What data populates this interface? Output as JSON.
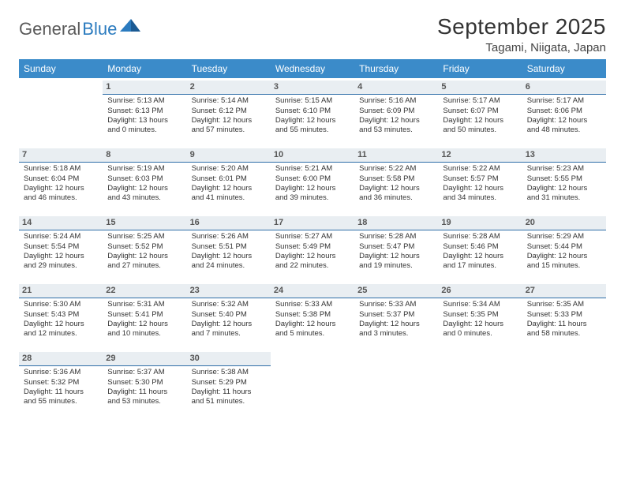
{
  "logo": {
    "text_a": "General",
    "text_b": "Blue"
  },
  "title": "September 2025",
  "location": "Tagami, Niigata, Japan",
  "colors": {
    "header_bg": "#3b8bc9",
    "header_text": "#ffffff",
    "daybar_bg": "#e9eef2",
    "daybar_border": "#2f6ea8",
    "logo_gray": "#5a5a5a",
    "logo_blue": "#2b7bbf"
  },
  "weekdays": [
    "Sunday",
    "Monday",
    "Tuesday",
    "Wednesday",
    "Thursday",
    "Friday",
    "Saturday"
  ],
  "start_offset": 1,
  "days": [
    {
      "n": 1,
      "sr": "5:13 AM",
      "ss": "6:13 PM",
      "dl": "13 hours and 0 minutes."
    },
    {
      "n": 2,
      "sr": "5:14 AM",
      "ss": "6:12 PM",
      "dl": "12 hours and 57 minutes."
    },
    {
      "n": 3,
      "sr": "5:15 AM",
      "ss": "6:10 PM",
      "dl": "12 hours and 55 minutes."
    },
    {
      "n": 4,
      "sr": "5:16 AM",
      "ss": "6:09 PM",
      "dl": "12 hours and 53 minutes."
    },
    {
      "n": 5,
      "sr": "5:17 AM",
      "ss": "6:07 PM",
      "dl": "12 hours and 50 minutes."
    },
    {
      "n": 6,
      "sr": "5:17 AM",
      "ss": "6:06 PM",
      "dl": "12 hours and 48 minutes."
    },
    {
      "n": 7,
      "sr": "5:18 AM",
      "ss": "6:04 PM",
      "dl": "12 hours and 46 minutes."
    },
    {
      "n": 8,
      "sr": "5:19 AM",
      "ss": "6:03 PM",
      "dl": "12 hours and 43 minutes."
    },
    {
      "n": 9,
      "sr": "5:20 AM",
      "ss": "6:01 PM",
      "dl": "12 hours and 41 minutes."
    },
    {
      "n": 10,
      "sr": "5:21 AM",
      "ss": "6:00 PM",
      "dl": "12 hours and 39 minutes."
    },
    {
      "n": 11,
      "sr": "5:22 AM",
      "ss": "5:58 PM",
      "dl": "12 hours and 36 minutes."
    },
    {
      "n": 12,
      "sr": "5:22 AM",
      "ss": "5:57 PM",
      "dl": "12 hours and 34 minutes."
    },
    {
      "n": 13,
      "sr": "5:23 AM",
      "ss": "5:55 PM",
      "dl": "12 hours and 31 minutes."
    },
    {
      "n": 14,
      "sr": "5:24 AM",
      "ss": "5:54 PM",
      "dl": "12 hours and 29 minutes."
    },
    {
      "n": 15,
      "sr": "5:25 AM",
      "ss": "5:52 PM",
      "dl": "12 hours and 27 minutes."
    },
    {
      "n": 16,
      "sr": "5:26 AM",
      "ss": "5:51 PM",
      "dl": "12 hours and 24 minutes."
    },
    {
      "n": 17,
      "sr": "5:27 AM",
      "ss": "5:49 PM",
      "dl": "12 hours and 22 minutes."
    },
    {
      "n": 18,
      "sr": "5:28 AM",
      "ss": "5:47 PM",
      "dl": "12 hours and 19 minutes."
    },
    {
      "n": 19,
      "sr": "5:28 AM",
      "ss": "5:46 PM",
      "dl": "12 hours and 17 minutes."
    },
    {
      "n": 20,
      "sr": "5:29 AM",
      "ss": "5:44 PM",
      "dl": "12 hours and 15 minutes."
    },
    {
      "n": 21,
      "sr": "5:30 AM",
      "ss": "5:43 PM",
      "dl": "12 hours and 12 minutes."
    },
    {
      "n": 22,
      "sr": "5:31 AM",
      "ss": "5:41 PM",
      "dl": "12 hours and 10 minutes."
    },
    {
      "n": 23,
      "sr": "5:32 AM",
      "ss": "5:40 PM",
      "dl": "12 hours and 7 minutes."
    },
    {
      "n": 24,
      "sr": "5:33 AM",
      "ss": "5:38 PM",
      "dl": "12 hours and 5 minutes."
    },
    {
      "n": 25,
      "sr": "5:33 AM",
      "ss": "5:37 PM",
      "dl": "12 hours and 3 minutes."
    },
    {
      "n": 26,
      "sr": "5:34 AM",
      "ss": "5:35 PM",
      "dl": "12 hours and 0 minutes."
    },
    {
      "n": 27,
      "sr": "5:35 AM",
      "ss": "5:33 PM",
      "dl": "11 hours and 58 minutes."
    },
    {
      "n": 28,
      "sr": "5:36 AM",
      "ss": "5:32 PM",
      "dl": "11 hours and 55 minutes."
    },
    {
      "n": 29,
      "sr": "5:37 AM",
      "ss": "5:30 PM",
      "dl": "11 hours and 53 minutes."
    },
    {
      "n": 30,
      "sr": "5:38 AM",
      "ss": "5:29 PM",
      "dl": "11 hours and 51 minutes."
    }
  ],
  "labels": {
    "sunrise": "Sunrise:",
    "sunset": "Sunset:",
    "daylight": "Daylight:"
  }
}
